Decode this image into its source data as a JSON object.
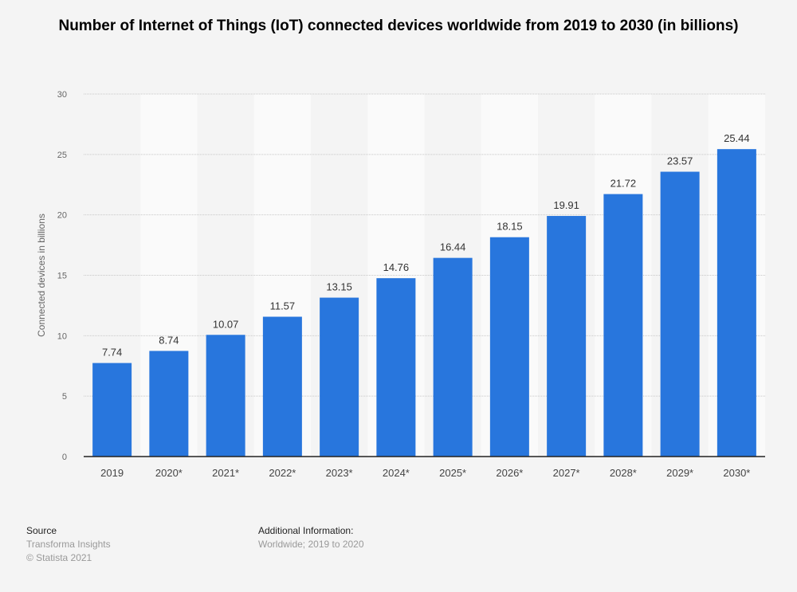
{
  "chart_data": {
    "type": "bar",
    "title": "Number of Internet of Things (IoT) connected devices worldwide from 2019 to 2030 (in billions)",
    "xlabel": "",
    "ylabel": "Connected devices in billions",
    "categories": [
      "2019",
      "2020*",
      "2021*",
      "2022*",
      "2023*",
      "2024*",
      "2025*",
      "2026*",
      "2027*",
      "2028*",
      "2029*",
      "2030*"
    ],
    "values": [
      7.74,
      8.74,
      10.07,
      11.57,
      13.15,
      14.76,
      16.44,
      18.15,
      19.91,
      21.72,
      23.57,
      25.44
    ],
    "data_labels": [
      "7.74",
      "8.74",
      "10.07",
      "11.57",
      "13.15",
      "14.76",
      "16.44",
      "18.15",
      "19.91",
      "21.72",
      "23.57",
      "25.44"
    ],
    "ylim": [
      0,
      30
    ],
    "yticks": [
      "0",
      "5",
      "10",
      "15",
      "20",
      "25",
      "30"
    ],
    "grid": true,
    "bar_color": "#2876dd"
  },
  "footer": {
    "source_heading": "Source",
    "source": "Transforma Insights",
    "copyright": "© Statista 2021",
    "additional_heading": "Additional Information:",
    "additional": "Worldwide; 2019 to 2020"
  }
}
